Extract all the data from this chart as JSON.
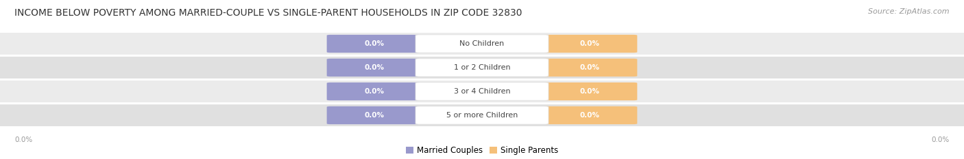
{
  "title": "INCOME BELOW POVERTY AMONG MARRIED-COUPLE VS SINGLE-PARENT HOUSEHOLDS IN ZIP CODE 32830",
  "source": "Source: ZipAtlas.com",
  "categories": [
    "No Children",
    "1 or 2 Children",
    "3 or 4 Children",
    "5 or more Children"
  ],
  "married_values": [
    0.0,
    0.0,
    0.0,
    0.0
  ],
  "single_values": [
    0.0,
    0.0,
    0.0,
    0.0
  ],
  "married_color": "#9999cc",
  "single_color": "#f5c07a",
  "row_colors": [
    "#ebebeb",
    "#e0e0e0",
    "#ebebeb",
    "#e0e0e0"
  ],
  "label_color": "#444444",
  "value_text_color": "#ffffff",
  "axis_label_color": "#999999",
  "title_color": "#333333",
  "source_color": "#999999",
  "title_fontsize": 10,
  "source_fontsize": 8,
  "category_fontsize": 8,
  "value_fontsize": 7.5,
  "legend_fontsize": 8.5,
  "background_color": "#ffffff",
  "center_label_bg": "#ffffff",
  "center_label_border": "#dddddd"
}
